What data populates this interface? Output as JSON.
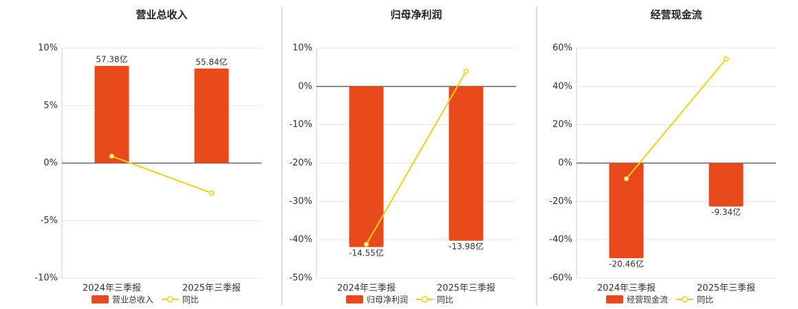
{
  "chart_data": [
    {
      "type": "bar",
      "title": "营业总收入",
      "categories": [
        "2024年三季报",
        "2025年三季报"
      ],
      "series": [
        {
          "name": "营业总收入",
          "color": "#e84a1b",
          "values": [
            57.38,
            55.84
          ],
          "value_labels": [
            "57.38亿",
            "55.84亿"
          ],
          "axis": "y2"
        },
        {
          "name": "同比",
          "type": "line",
          "color": "#f0cf1a",
          "values": [
            0.6,
            -2.6
          ]
        }
      ],
      "ylim": [
        -10,
        10
      ],
      "yticks": [
        {
          "value": -10,
          "label": "-10%"
        },
        {
          "value": -5,
          "label": "-5%"
        },
        {
          "value": 0,
          "label": "0%"
        },
        {
          "value": 5,
          "label": "5%"
        },
        {
          "value": 10,
          "label": "10%"
        }
      ],
      "y2lim": [
        -67.9,
        67.9
      ],
      "grid": true
    },
    {
      "type": "bar",
      "title": "归母净利润",
      "categories": [
        "2024年三季报",
        "2025年三季报"
      ],
      "series": [
        {
          "name": "归母净利润",
          "color": "#e84a1b",
          "values": [
            -14.55,
            -13.98
          ],
          "value_labels": [
            "-14.55亿",
            "-13.98亿"
          ],
          "axis": "y2"
        },
        {
          "name": "同比",
          "type": "line",
          "color": "#f0cf1a",
          "values": [
            -41.2,
            3.9
          ]
        }
      ],
      "ylim": [
        -50,
        10
      ],
      "yticks": [
        {
          "value": -50,
          "label": "-50%"
        },
        {
          "value": -40,
          "label": "-40%"
        },
        {
          "value": -30,
          "label": "-30%"
        },
        {
          "value": -20,
          "label": "-20%"
        },
        {
          "value": -10,
          "label": "-10%"
        },
        {
          "value": 0,
          "label": "0%"
        },
        {
          "value": 10,
          "label": "10%"
        }
      ],
      "y2lim": [
        -17.36,
        3.47
      ],
      "grid": true
    },
    {
      "type": "bar",
      "title": "经营现金流",
      "categories": [
        "2024年三季报",
        "2025年三季报"
      ],
      "series": [
        {
          "name": "经营现金流",
          "color": "#e84a1b",
          "values": [
            -20.46,
            -9.34
          ],
          "value_labels": [
            "-20.46亿",
            "-9.34亿"
          ],
          "axis": "y2"
        },
        {
          "name": "同比",
          "type": "line",
          "color": "#f0cf1a",
          "values": [
            -8.2,
            54.3
          ]
        }
      ],
      "ylim": [
        -60,
        60
      ],
      "yticks": [
        {
          "value": -60,
          "label": "-60%"
        },
        {
          "value": -40,
          "label": "-40%"
        },
        {
          "value": -20,
          "label": "-20%"
        },
        {
          "value": 0,
          "label": "0%"
        },
        {
          "value": 20,
          "label": "20%"
        },
        {
          "value": 40,
          "label": "40%"
        },
        {
          "value": 60,
          "label": "60%"
        }
      ],
      "y2lim": [
        -24.75,
        24.75
      ],
      "grid": true
    }
  ]
}
